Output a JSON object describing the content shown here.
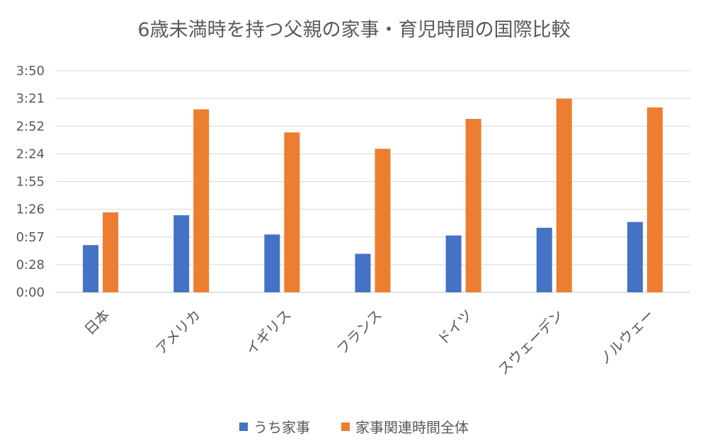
{
  "chart_data": {
    "type": "bar",
    "title": "6歳未満時を持つ父親の家事・育児時間の国際比較",
    "categories": [
      "日本",
      "アメリカ",
      "イギリス",
      "フランス",
      "ドイツ",
      "スウェーデン",
      "ノルウェー"
    ],
    "y_ticks": [
      "0:00",
      "0:28",
      "0:57",
      "1:26",
      "1:55",
      "2:24",
      "2:52",
      "3:21",
      "3:50"
    ],
    "ylim_minutes": [
      0,
      230
    ],
    "grid": true,
    "legend_position": "bottom",
    "series": [
      {
        "name": "うち家事",
        "color": "#4472C4",
        "values_minutes": [
          49,
          80,
          60,
          40,
          59,
          67,
          73
        ]
      },
      {
        "name": "家事関連時間全体",
        "color": "#ED7D31",
        "values_minutes": [
          83,
          190,
          166,
          149,
          180,
          201,
          192
        ]
      }
    ]
  }
}
